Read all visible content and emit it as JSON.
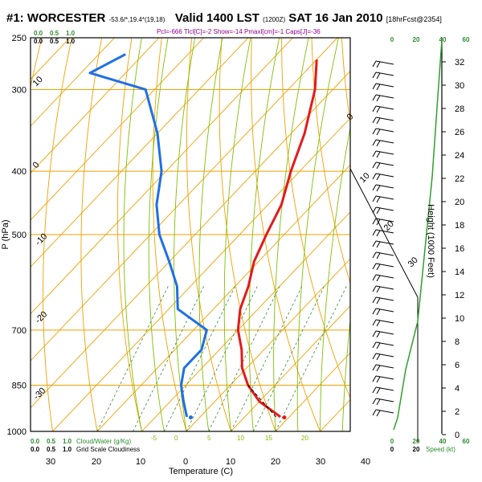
{
  "header": {
    "station": "#1: WORCESTER",
    "coords": "-53.6/*,19.4*(19,18)",
    "valid": "Valid 1400 LST",
    "utc": "(1200Z)",
    "date": "SAT 16 Jan 2010",
    "forecast": "[18hrFcst@2354]",
    "indices": "Pcl=-666 Tlcl[C]=-2 Show=-14 Pmaxl[cm]=-1 Caps[J]=-36"
  },
  "labels": {
    "ylabel": "P (hPa)",
    "xlabel": "Temperature (C)",
    "height_label": "Height (1000 Feet)",
    "mixing_ratio_label": "Cloud/Water (g/Kg)",
    "grid_cloudiness_label": "Grid Scale Cloudiness",
    "speed_label": "Speed (kt)"
  },
  "legend_scale": {
    "green": [
      "0.0",
      "0.5",
      "1.0"
    ],
    "black": [
      "0.0",
      "0.5",
      "1.0"
    ]
  },
  "speed_ticks": [
    "0",
    "20",
    "40",
    "60"
  ],
  "speed_ticks_black": [
    "0",
    "20"
  ],
  "colors": {
    "temperature": "#e41a1c",
    "dewpoint": "#1f6fe6",
    "isotherm": "#f0a000",
    "dry_adiabat": "#f0a000",
    "moist_adiabat": "#7fc000",
    "mixing_ratio": "#2e8b2e",
    "wind": "#000000",
    "speed_profile": "#2ea02e"
  },
  "chart_data": {
    "type": "line",
    "pressure_ticks": [
      1000,
      850,
      700,
      500,
      400,
      300,
      250
    ],
    "temperature_ticks": [
      30,
      20,
      10,
      0,
      10,
      20,
      30,
      40
    ],
    "height_ticks": [
      0,
      2,
      4,
      6,
      8,
      10,
      12,
      14,
      16,
      18,
      20,
      22,
      24,
      26,
      28,
      30,
      32
    ],
    "isotherm_labels": [
      "10",
      "0",
      "-10",
      "-20",
      "-30",
      "0",
      "10",
      "20",
      "30"
    ],
    "moist_labels": [
      "-5",
      "0",
      "5",
      "10",
      "15",
      "20"
    ],
    "series": [
      {
        "name": "Temperature",
        "points": [
          [
            -50.0,
            270
          ],
          [
            -44.0,
            300
          ],
          [
            -37.0,
            350
          ],
          [
            -32.0,
            400
          ],
          [
            -27.0,
            450
          ],
          [
            -24.0,
            500
          ],
          [
            -21.0,
            550
          ],
          [
            -17.0,
            600
          ],
          [
            -14.0,
            650
          ],
          [
            -10.0,
            700
          ],
          [
            -5.0,
            750
          ],
          [
            -1.0,
            800
          ],
          [
            4.0,
            850
          ],
          [
            10.0,
            900
          ],
          [
            18.0,
            950
          ]
        ]
      },
      {
        "name": "Dewpoint",
        "points": [
          [
            -94.0,
            265
          ],
          [
            -98.0,
            283
          ],
          [
            -82.0,
            300
          ],
          [
            -70.0,
            350
          ],
          [
            -61.0,
            400
          ],
          [
            -55.0,
            450
          ],
          [
            -48.0,
            500
          ],
          [
            -40.0,
            550
          ],
          [
            -33.0,
            600
          ],
          [
            -28.0,
            650
          ],
          [
            -17.0,
            700
          ],
          [
            -14.0,
            750
          ],
          [
            -14.0,
            800
          ],
          [
            -11.0,
            850
          ],
          [
            -7.0,
            900
          ],
          [
            -3.0,
            950
          ]
        ]
      }
    ],
    "surface_points": [
      {
        "name": "parcel-start",
        "t": 19.0,
        "p": 952
      },
      {
        "name": "dewpoint-surface",
        "t": -2.0,
        "p": 952
      }
    ]
  }
}
